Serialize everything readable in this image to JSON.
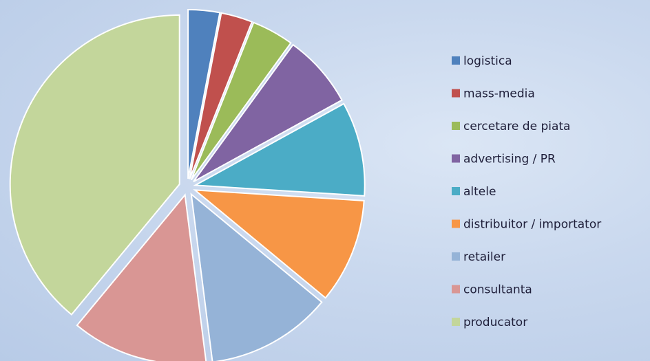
{
  "chart_data": {
    "type": "pie",
    "categories": [
      "logistica",
      "mass-media",
      "cercetare de piata",
      "advertising / PR",
      "altele",
      "distribuitor / importator",
      "retailer",
      "consultanta",
      "producator"
    ],
    "values": [
      3,
      3,
      4,
      7,
      9,
      10,
      12,
      13,
      39
    ],
    "colors": [
      "#4f81bd",
      "#c0504d",
      "#9bbb59",
      "#8064a2",
      "#4bacc6",
      "#f79646",
      "#95b3d7",
      "#d99694",
      "#c3d69b"
    ],
    "legend": "right"
  }
}
